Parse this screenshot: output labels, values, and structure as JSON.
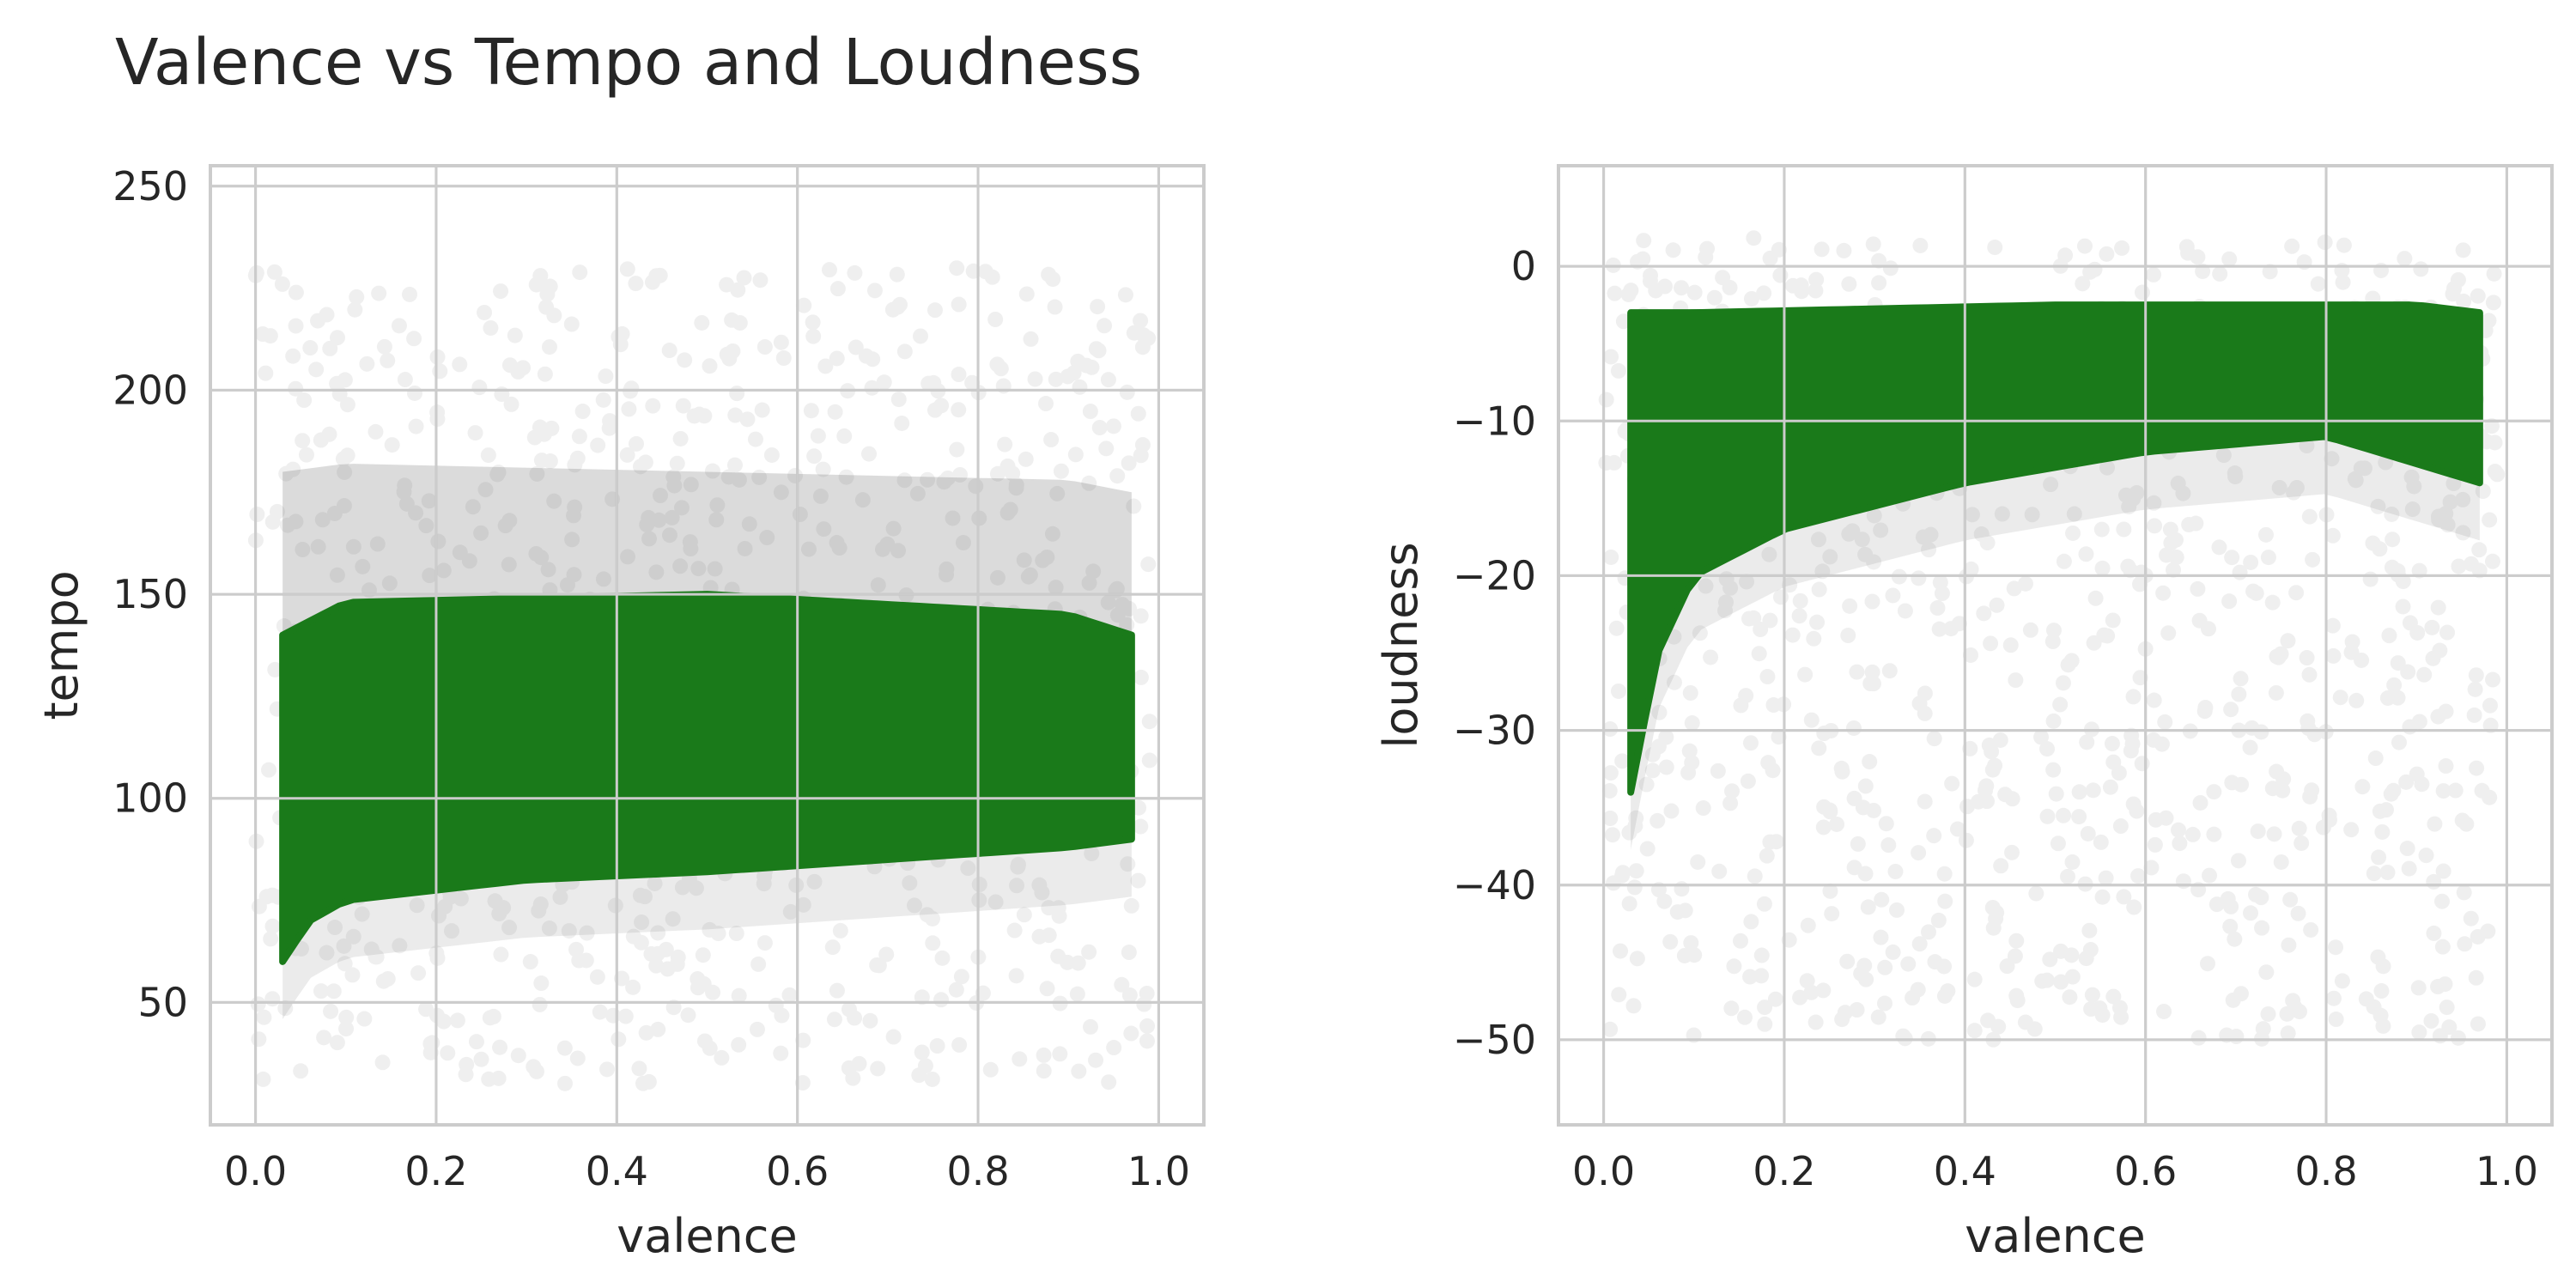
{
  "figure": {
    "title": "Valence vs Tempo and Loudness"
  },
  "colors": {
    "point_primary": "#1a7a1a",
    "point_sparse": "#5a5a5a",
    "grid": "#cccccc",
    "spine": "#cccccc",
    "text": "#262626",
    "background": "#ffffff"
  },
  "chart_data": [
    {
      "type": "scatter",
      "title": "",
      "xlabel": "valence",
      "ylabel": "tempo",
      "xlim": [
        -0.05,
        1.05
      ],
      "ylim": [
        20,
        255
      ],
      "xticks": [
        0.0,
        0.2,
        0.4,
        0.6,
        0.8,
        1.0
      ],
      "xtick_labels": [
        "0.0",
        "0.2",
        "0.4",
        "0.6",
        "0.8",
        "1.0"
      ],
      "yticks": [
        50,
        100,
        150,
        200,
        250
      ],
      "ytick_labels": [
        "50",
        "100",
        "150",
        "200",
        "250"
      ],
      "grid": true,
      "point_alpha": 0.01,
      "dense_region": {
        "x": [
          0.03,
          0.97
        ],
        "y_lower": [
          [
            0.03,
            60
          ],
          [
            0.06,
            70
          ],
          [
            0.1,
            75
          ],
          [
            0.3,
            80
          ],
          [
            0.5,
            82
          ],
          [
            0.7,
            85
          ],
          [
            0.9,
            88
          ],
          [
            0.97,
            90
          ]
        ],
        "y_upper": [
          [
            0.03,
            140
          ],
          [
            0.1,
            148
          ],
          [
            0.5,
            150
          ],
          [
            0.9,
            145
          ],
          [
            0.97,
            140
          ]
        ],
        "y_upper_extended": [
          [
            0.03,
            180
          ],
          [
            0.1,
            182
          ],
          [
            0.5,
            180
          ],
          [
            0.9,
            178
          ],
          [
            0.97,
            175
          ]
        ]
      },
      "sparse_range": {
        "x": [
          0.0,
          0.99
        ],
        "y": [
          30,
          230
        ]
      }
    },
    {
      "type": "scatter",
      "title": "",
      "xlabel": "valence",
      "ylabel": "loudness",
      "xlim": [
        -0.05,
        1.05
      ],
      "ylim": [
        -55.5,
        6.5
      ],
      "xticks": [
        0.0,
        0.2,
        0.4,
        0.6,
        0.8,
        1.0
      ],
      "xtick_labels": [
        "0.0",
        "0.2",
        "0.4",
        "0.6",
        "0.8",
        "1.0"
      ],
      "yticks": [
        0,
        -10,
        -20,
        -30,
        -40,
        -50
      ],
      "ytick_labels": [
        "0",
        "−10",
        "−20",
        "−30",
        "−40",
        "−50"
      ],
      "grid": true,
      "point_alpha": 0.01,
      "dense_region": {
        "x": [
          0.03,
          0.97
        ],
        "y_upper": [
          [
            0.03,
            -3
          ],
          [
            0.1,
            -3
          ],
          [
            0.5,
            -2.5
          ],
          [
            0.9,
            -2.5
          ],
          [
            0.97,
            -3
          ]
        ],
        "y_lower": [
          [
            0.03,
            -34
          ],
          [
            0.06,
            -25
          ],
          [
            0.1,
            -20
          ],
          [
            0.2,
            -17
          ],
          [
            0.4,
            -14
          ],
          [
            0.6,
            -12
          ],
          [
            0.8,
            -11
          ],
          [
            0.97,
            -14
          ]
        ]
      },
      "sparse_range": {
        "x": [
          0.0,
          0.99
        ],
        "y": [
          -50,
          2
        ]
      }
    }
  ]
}
